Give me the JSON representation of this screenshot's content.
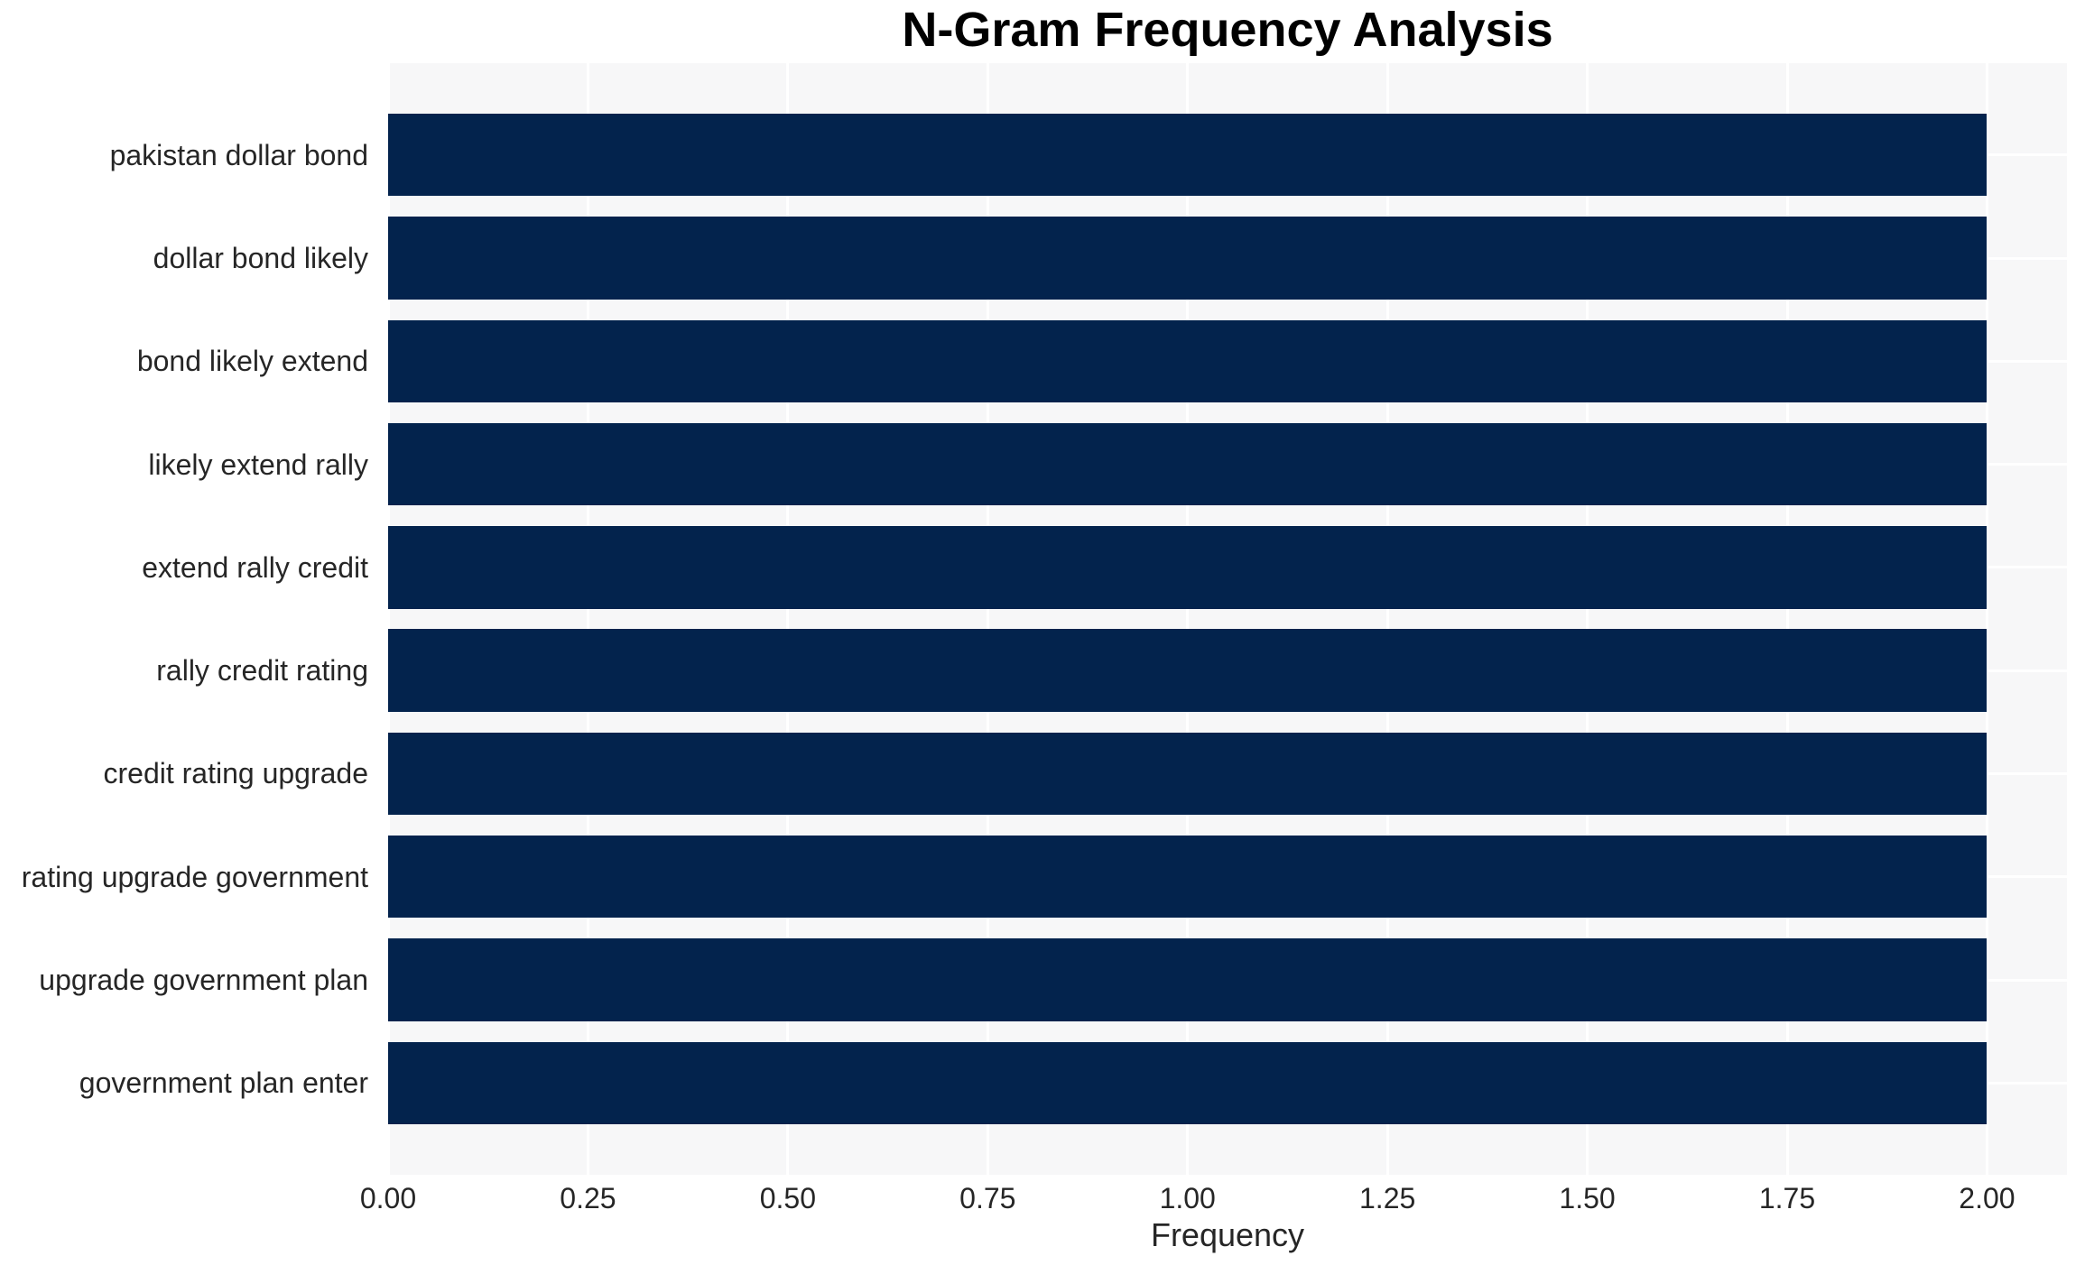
{
  "chart_data": {
    "type": "bar",
    "orientation": "horizontal",
    "title": "N-Gram Frequency Analysis",
    "xlabel": "Frequency",
    "ylabel": "",
    "categories": [
      "pakistan dollar bond",
      "dollar bond likely",
      "bond likely extend",
      "likely extend rally",
      "extend rally credit",
      "rally credit rating",
      "credit rating upgrade",
      "rating upgrade government",
      "upgrade government plan",
      "government plan enter"
    ],
    "values": [
      2,
      2,
      2,
      2,
      2,
      2,
      2,
      2,
      2,
      2
    ],
    "xlim": [
      0,
      2.1
    ],
    "xticks": [
      0,
      0.25,
      0.5,
      0.75,
      1.0,
      1.25,
      1.5,
      1.75,
      2.0
    ],
    "xtick_labels": [
      "0.00",
      "0.25",
      "0.50",
      "0.75",
      "1.00",
      "1.25",
      "1.50",
      "1.75",
      "2.00"
    ],
    "grid": true,
    "legend_position": "none",
    "colors": {
      "bar": "#03234d",
      "plot_background": "#f7f7f8",
      "gridline": "#ffffff",
      "text": "#262626",
      "title": "#000000"
    }
  }
}
